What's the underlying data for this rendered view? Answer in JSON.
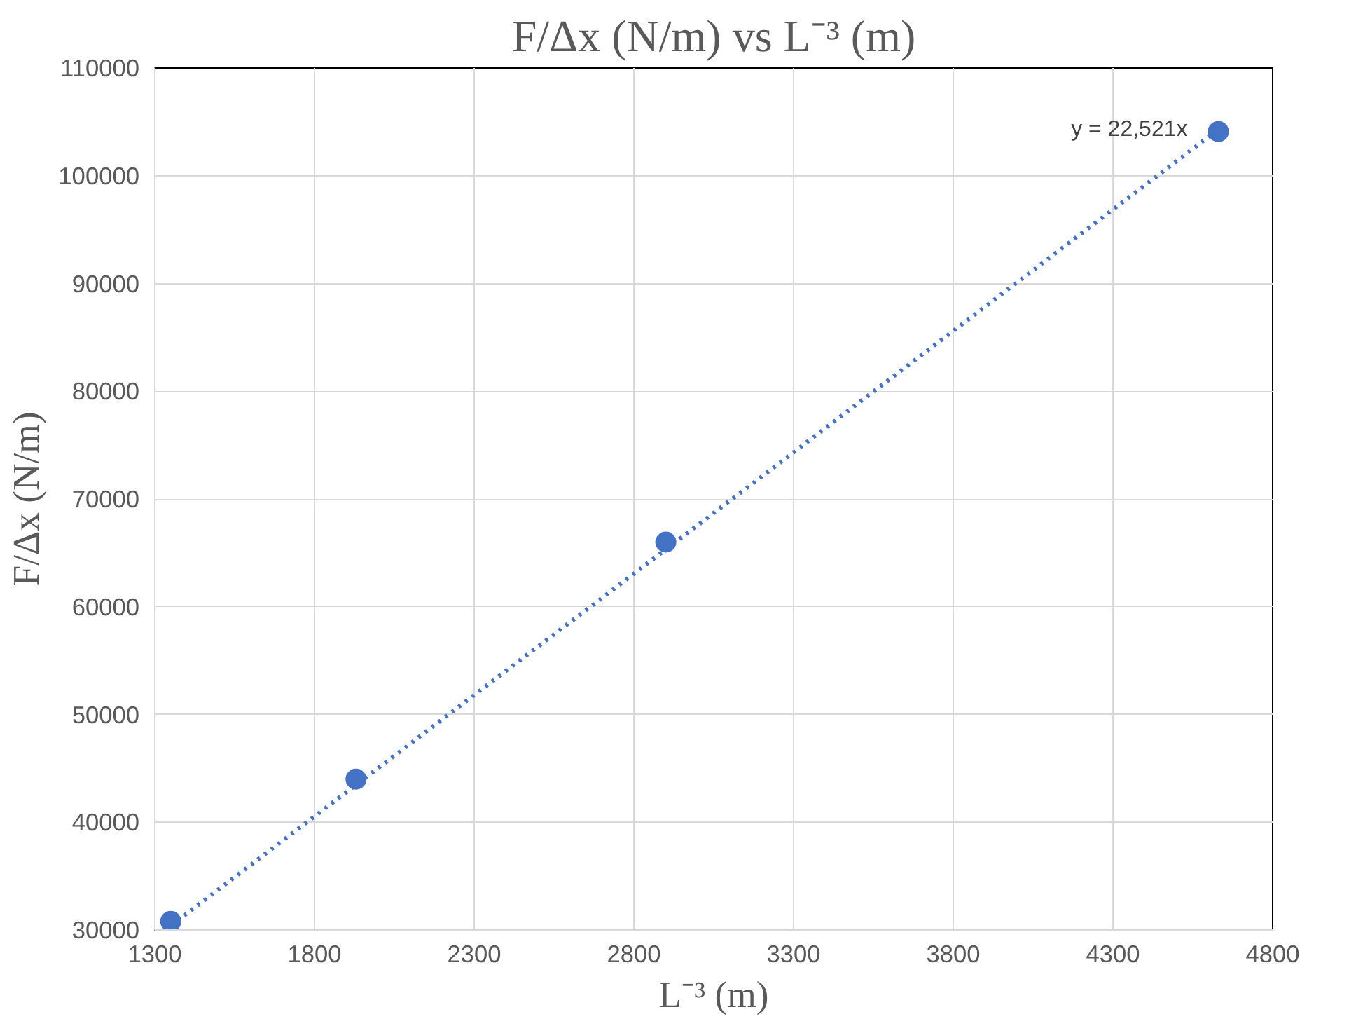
{
  "chart_data": {
    "type": "scatter",
    "title": "F/Δx (N/m) vs L⁻³ (m)",
    "xlabel": "L⁻³ (m)",
    "ylabel": "F/Δx (N/m)",
    "x": [
      1350,
      1930,
      2900,
      4630
    ],
    "series": [
      {
        "color": "#4472c4",
        "values": [
          30800,
          44000,
          66000,
          104100
        ]
      },
      {
        "type": "line",
        "color": "#4472c4",
        "line_style": "dotted",
        "marker": "none",
        "x": [
          1350,
          4630
        ],
        "values": [
          30400,
          104300
        ]
      }
    ],
    "annotations": [
      "y = 22,521x"
    ],
    "xlim": [
      1300,
      4800
    ],
    "xticks": [
      1300,
      1800,
      2300,
      2800,
      3300,
      3800,
      4300,
      4800
    ],
    "ylim": [
      30000,
      110000
    ],
    "yticks": [
      30000,
      40000,
      50000,
      60000,
      70000,
      80000,
      90000,
      100000,
      110000
    ],
    "grid": true,
    "marker": "circle"
  }
}
